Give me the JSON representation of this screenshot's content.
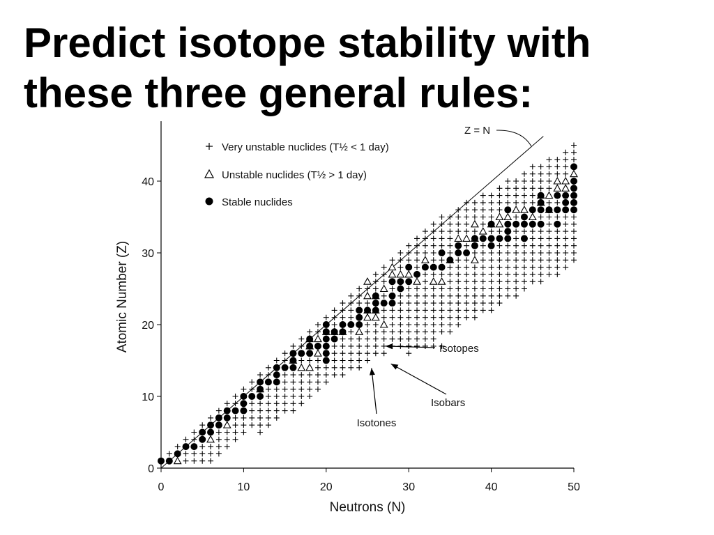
{
  "slide": {
    "title_line1": "Predict isotope stability with",
    "title_line2": "these three general rules:"
  },
  "chart_data": {
    "type": "scatter",
    "xlabel": "Neutrons (N)",
    "ylabel": "Atomic Number (Z)",
    "xlim": [
      0,
      50
    ],
    "ylim": [
      0,
      48
    ],
    "xticks": [
      0,
      10,
      20,
      30,
      40,
      50
    ],
    "yticks": [
      0,
      10,
      20,
      30,
      40
    ],
    "grid": false,
    "legend_position": "top-left",
    "legend": [
      {
        "symbol": "+",
        "label": "Very unstable nuclides (T½ < 1 day)"
      },
      {
        "symbol": "△",
        "label": "Unstable nuclides (T½ > 1 day)"
      },
      {
        "symbol": "●",
        "label": "Stable nuclides"
      }
    ],
    "reference_line": {
      "label": "Z = N",
      "points": [
        [
          0,
          0
        ],
        [
          48,
          48
        ]
      ]
    },
    "annotations": [
      {
        "text": "Isotopes",
        "arrow_to": [
          26.5,
          17
        ]
      },
      {
        "text": "Isobars",
        "arrow_to": [
          27,
          15.5
        ]
      },
      {
        "text": "Isotones",
        "arrow_to": [
          26,
          15.5
        ]
      }
    ],
    "series": [
      {
        "name": "Stable nuclides",
        "marker": "circle",
        "points": [
          [
            0,
            1
          ],
          [
            1,
            1
          ],
          [
            2,
            2
          ],
          [
            3,
            3
          ],
          [
            4,
            3
          ],
          [
            5,
            4
          ],
          [
            5,
            5
          ],
          [
            6,
            5
          ],
          [
            6,
            6
          ],
          [
            7,
            6
          ],
          [
            7,
            7
          ],
          [
            8,
            7
          ],
          [
            8,
            8
          ],
          [
            9,
            8
          ],
          [
            10,
            8
          ],
          [
            10,
            9
          ],
          [
            10,
            10
          ],
          [
            11,
            10
          ],
          [
            12,
            10
          ],
          [
            12,
            11
          ],
          [
            12,
            12
          ],
          [
            13,
            12
          ],
          [
            14,
            12
          ],
          [
            14,
            13
          ],
          [
            14,
            14
          ],
          [
            15,
            14
          ],
          [
            16,
            14
          ],
          [
            16,
            15
          ],
          [
            16,
            16
          ],
          [
            17,
            16
          ],
          [
            18,
            16
          ],
          [
            18,
            17
          ],
          [
            18,
            18
          ],
          [
            19,
            17
          ],
          [
            20,
            15
          ],
          [
            20,
            16
          ],
          [
            20,
            17
          ],
          [
            20,
            18
          ],
          [
            20,
            19
          ],
          [
            20,
            20
          ],
          [
            21,
            18
          ],
          [
            21,
            19
          ],
          [
            22,
            19
          ],
          [
            22,
            20
          ],
          [
            23,
            20
          ],
          [
            24,
            20
          ],
          [
            24,
            21
          ],
          [
            24,
            22
          ],
          [
            25,
            22
          ],
          [
            26,
            22
          ],
          [
            26,
            23
          ],
          [
            26,
            24
          ],
          [
            27,
            23
          ],
          [
            28,
            23
          ],
          [
            28,
            24
          ],
          [
            28,
            26
          ],
          [
            29,
            25
          ],
          [
            29,
            26
          ],
          [
            30,
            26
          ],
          [
            30,
            28
          ],
          [
            31,
            27
          ],
          [
            32,
            28
          ],
          [
            33,
            28
          ],
          [
            34,
            28
          ],
          [
            34,
            30
          ],
          [
            35,
            29
          ],
          [
            36,
            30
          ],
          [
            36,
            31
          ],
          [
            37,
            30
          ],
          [
            38,
            31
          ],
          [
            38,
            32
          ],
          [
            39,
            32
          ],
          [
            40,
            31
          ],
          [
            40,
            32
          ],
          [
            40,
            34
          ],
          [
            41,
            32
          ],
          [
            42,
            32
          ],
          [
            42,
            33
          ],
          [
            42,
            34
          ],
          [
            42,
            36
          ],
          [
            43,
            34
          ],
          [
            44,
            32
          ],
          [
            44,
            34
          ],
          [
            44,
            35
          ],
          [
            45,
            34
          ],
          [
            45,
            36
          ],
          [
            46,
            34
          ],
          [
            46,
            36
          ],
          [
            46,
            37
          ],
          [
            46,
            38
          ],
          [
            47,
            36
          ],
          [
            48,
            34
          ],
          [
            48,
            36
          ],
          [
            48,
            38
          ],
          [
            49,
            36
          ],
          [
            49,
            37
          ],
          [
            49,
            38
          ],
          [
            50,
            36
          ],
          [
            50,
            37
          ],
          [
            50,
            38
          ],
          [
            50,
            39
          ],
          [
            50,
            40
          ],
          [
            50,
            42
          ]
        ]
      },
      {
        "name": "Unstable nuclides",
        "marker": "triangle",
        "points": [
          [
            2,
            1
          ],
          [
            6,
            4
          ],
          [
            8,
            6
          ],
          [
            12,
            11
          ],
          [
            16,
            15
          ],
          [
            17,
            14
          ],
          [
            18,
            14
          ],
          [
            18,
            17
          ],
          [
            18,
            18
          ],
          [
            19,
            16
          ],
          [
            19,
            18
          ],
          [
            20,
            19
          ],
          [
            21,
            19
          ],
          [
            22,
            19
          ],
          [
            24,
            19
          ],
          [
            25,
            21
          ],
          [
            25,
            22
          ],
          [
            25,
            24
          ],
          [
            25,
            26
          ],
          [
            26,
            21
          ],
          [
            26,
            22
          ],
          [
            26,
            24
          ],
          [
            27,
            20
          ],
          [
            27,
            25
          ],
          [
            28,
            27
          ],
          [
            28,
            28
          ],
          [
            29,
            27
          ],
          [
            30,
            27
          ],
          [
            31,
            26
          ],
          [
            32,
            29
          ],
          [
            33,
            26
          ],
          [
            34,
            26
          ],
          [
            35,
            29
          ],
          [
            36,
            32
          ],
          [
            37,
            32
          ],
          [
            38,
            29
          ],
          [
            38,
            32
          ],
          [
            38,
            34
          ],
          [
            39,
            33
          ],
          [
            40,
            34
          ],
          [
            41,
            34
          ],
          [
            41,
            35
          ],
          [
            42,
            35
          ],
          [
            43,
            36
          ],
          [
            44,
            36
          ],
          [
            45,
            35
          ],
          [
            46,
            37
          ],
          [
            46,
            38
          ],
          [
            47,
            36
          ],
          [
            47,
            38
          ],
          [
            48,
            39
          ],
          [
            48,
            40
          ],
          [
            49,
            39
          ],
          [
            49,
            40
          ],
          [
            50,
            41
          ]
        ]
      },
      {
        "name": "Very unstable nuclides",
        "marker": "plus",
        "description_bands": "see script-generated grid"
      }
    ]
  }
}
